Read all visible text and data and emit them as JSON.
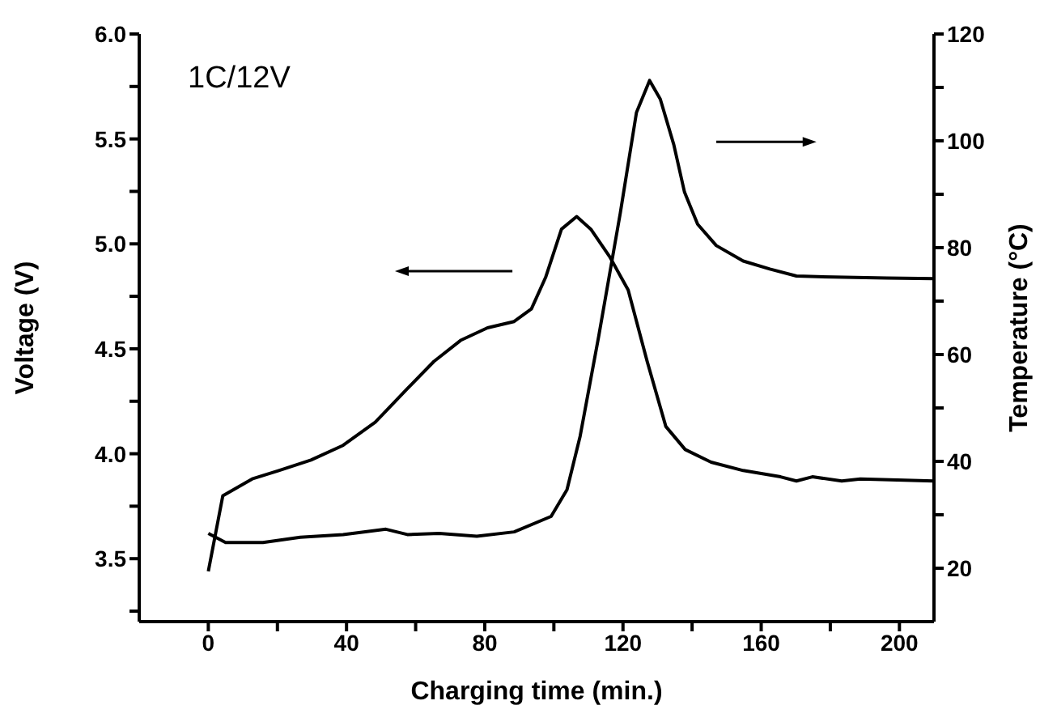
{
  "chart_data": {
    "type": "line",
    "xlabel": "Charging time (min.)",
    "ylabel": "Voltage (V)",
    "y2label": "Temperature (°C)",
    "annotations": [
      "1C/12V"
    ],
    "xlim": [
      -20,
      210
    ],
    "xticks": [
      0,
      {
        "value": 20,
        "label": null
      },
      40,
      {
        "value": 60,
        "label": null
      },
      80,
      {
        "value": 100,
        "label": null
      },
      120,
      {
        "value": 140,
        "label": null
      },
      160,
      {
        "value": 180,
        "label": null
      },
      200
    ],
    "ylim": [
      3.2,
      6.0
    ],
    "yticks": [
      {
        "value": 3.25,
        "label": null
      },
      {
        "value": 3.5,
        "label": "3.5"
      },
      {
        "value": 3.75,
        "label": null
      },
      {
        "value": 4.0,
        "label": "4.0"
      },
      {
        "value": 4.25,
        "label": null
      },
      {
        "value": 4.5,
        "label": "4.5"
      },
      {
        "value": 4.75,
        "label": null
      },
      {
        "value": 5.0,
        "label": "5.0"
      },
      {
        "value": 5.25,
        "label": null
      },
      {
        "value": 5.5,
        "label": "5.5"
      },
      {
        "value": 5.75,
        "label": null
      },
      {
        "value": 6.0,
        "label": "6.0"
      }
    ],
    "y2lim": [
      10,
      120
    ],
    "y2ticks": [
      20,
      {
        "value": 30,
        "label": null
      },
      40,
      {
        "value": 50,
        "label": null
      },
      60,
      {
        "value": 70,
        "label": null
      },
      80,
      {
        "value": 90,
        "label": null
      },
      100,
      {
        "value": 110,
        "label": null
      },
      120
    ],
    "line_style": "solid",
    "series": [
      {
        "color": "#000000",
        "x": [
          0,
          4.2,
          12.7,
          20.4,
          29.7,
          39,
          48.3,
          57.6,
          65.3,
          73,
          80.8,
          88.5,
          93.5,
          97.6,
          102.2,
          106.6,
          110.7,
          116.1,
          121.5,
          127,
          132.4,
          138,
          145.5,
          154.8,
          165.6,
          170.2,
          174.8,
          183.3,
          188.7,
          210
        ],
        "values": [
          3.44,
          3.8,
          3.88,
          3.92,
          3.97,
          4.04,
          4.15,
          4.31,
          4.44,
          4.54,
          4.6,
          4.63,
          4.69,
          4.84,
          5.07,
          5.13,
          5.07,
          4.94,
          4.78,
          4.44,
          4.13,
          4.02,
          3.96,
          3.92,
          3.89,
          3.87,
          3.89,
          3.87,
          3.88,
          3.87
        ]
      },
      {
        "color": "#000000",
        "axis": "y2",
        "x": [
          0,
          5,
          15.8,
          26.6,
          39,
          51.4,
          57.6,
          66.8,
          77.7,
          88.5,
          99.2,
          103.8,
          107.6,
          113,
          119.2,
          123.9,
          127.7,
          130.8,
          134.7,
          137.8,
          141.6,
          147,
          154.8,
          162.5,
          170.2,
          181,
          196.4,
          210
        ],
        "values": [
          26.5,
          24.8,
          24.8,
          25.8,
          26.3,
          27.3,
          26.3,
          26.5,
          26,
          26.8,
          29.7,
          34.7,
          44.7,
          63.5,
          86.4,
          105.3,
          111.3,
          107.8,
          99.3,
          90.4,
          84.4,
          80.4,
          77.5,
          76,
          74.7,
          74.5,
          74.3,
          74.2
        ]
      }
    ]
  }
}
